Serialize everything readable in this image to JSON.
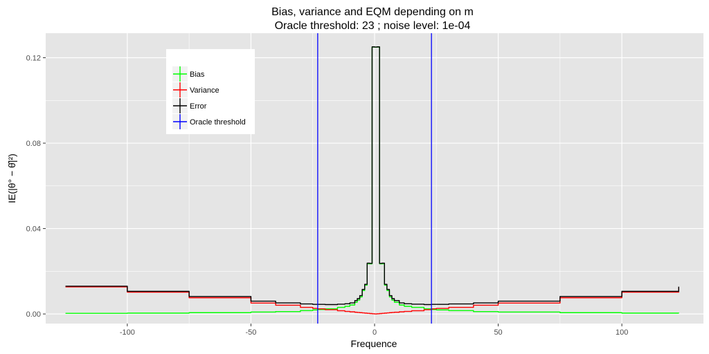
{
  "chart_data": {
    "type": "line",
    "title_line1": "Bias, variance and EQM depending on m",
    "title_line2": " Oracle threshold:  23 ; noise level:  1e-04",
    "xlabel": "Frequence",
    "ylabel": "IE(|θ° − θ̂|²)",
    "xlim": [
      -133,
      133
    ],
    "ylim": [
      -0.0045,
      0.1315
    ],
    "x_ticks": [
      -100,
      -50,
      0,
      50,
      100
    ],
    "x_tick_labels": [
      "-100",
      "-50",
      "0",
      "50",
      "100"
    ],
    "y_ticks": [
      0.0,
      0.04,
      0.08,
      0.12
    ],
    "y_tick_labels": [
      "0.00",
      "0.04",
      "0.08",
      "0.12"
    ],
    "grid": true,
    "legend_position": "top-left",
    "oracle_threshold": 23,
    "vlines": [
      -23,
      23
    ],
    "x": [
      -125,
      -100,
      -75,
      -50,
      -40,
      -30,
      -25,
      -23,
      -20,
      -15,
      -12,
      -10,
      -8,
      -7,
      -6,
      -5,
      -4,
      -3,
      -2,
      -1,
      0,
      1,
      2,
      3,
      4,
      5,
      6,
      7,
      8,
      10,
      12,
      15,
      20,
      23,
      25,
      30,
      40,
      50,
      75,
      100,
      123
    ],
    "series": [
      {
        "name": "Bias",
        "color": "#00ff00",
        "values": [
          0.0003,
          0.0004,
          0.0006,
          0.0009,
          0.0011,
          0.0016,
          0.0019,
          0.0021,
          0.0024,
          0.0031,
          0.0036,
          0.0042,
          0.0055,
          0.0065,
          0.008,
          0.011,
          0.0135,
          0.0235,
          0.0235,
          0.125,
          0.125,
          0.125,
          0.0235,
          0.0235,
          0.0135,
          0.011,
          0.008,
          0.0065,
          0.0055,
          0.0042,
          0.0036,
          0.0031,
          0.0024,
          0.0021,
          0.0019,
          0.0016,
          0.0011,
          0.0009,
          0.0006,
          0.0004,
          0.0003
        ]
      },
      {
        "name": "Variance",
        "color": "#ff0000",
        "values": [
          0.0127,
          0.0102,
          0.0076,
          0.0051,
          0.0041,
          0.0031,
          0.0026,
          0.0024,
          0.002,
          0.0015,
          0.0012,
          0.001,
          0.0008,
          0.0007,
          0.0006,
          0.0005,
          0.0004,
          0.0003,
          0.0002,
          0.0001,
          0.0,
          0.0001,
          0.0002,
          0.0003,
          0.0004,
          0.0005,
          0.0006,
          0.0007,
          0.0008,
          0.001,
          0.0012,
          0.0015,
          0.002,
          0.0024,
          0.0026,
          0.0031,
          0.0041,
          0.0051,
          0.0076,
          0.0102,
          0.0125
        ]
      },
      {
        "name": "Error",
        "color": "#000000",
        "values": [
          0.013,
          0.0106,
          0.0082,
          0.006,
          0.0052,
          0.0047,
          0.0045,
          0.0045,
          0.0044,
          0.0046,
          0.0048,
          0.0052,
          0.0063,
          0.0072,
          0.0086,
          0.0115,
          0.0139,
          0.0238,
          0.0237,
          0.1251,
          0.125,
          0.1251,
          0.0237,
          0.0238,
          0.0139,
          0.0115,
          0.0086,
          0.0072,
          0.0063,
          0.0052,
          0.0048,
          0.0046,
          0.0044,
          0.0045,
          0.0045,
          0.0047,
          0.0052,
          0.006,
          0.0082,
          0.0106,
          0.0128
        ]
      }
    ],
    "legend": [
      {
        "label": "Bias",
        "color": "#00ff00"
      },
      {
        "label": "Variance",
        "color": "#ff0000"
      },
      {
        "label": "Error",
        "color": "#000000"
      },
      {
        "label": "Oracle threshold",
        "color": "#0000ff"
      }
    ],
    "panel_color": "#e5e5e5",
    "grid_color": "#ffffff",
    "vline_color": "#0000ff"
  }
}
